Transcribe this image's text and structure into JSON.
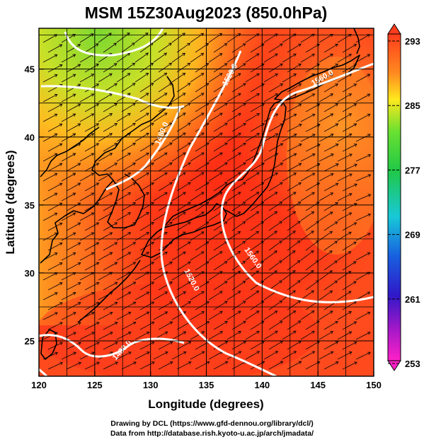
{
  "title": "MSM 15Z30Aug2023 (850.0hPa)",
  "xlabel": "Longitude (degrees)",
  "ylabel": "Latitude  (degrees)",
  "lon_range": [
    120,
    150
  ],
  "lat_range": [
    22.4,
    48
  ],
  "x_ticks": [
    {
      "value": 120,
      "label": "120"
    },
    {
      "value": 125,
      "label": "125"
    },
    {
      "value": 130,
      "label": "130"
    },
    {
      "value": 135,
      "label": "135"
    },
    {
      "value": 140,
      "label": "140"
    },
    {
      "value": 145,
      "label": "145"
    },
    {
      "value": 150,
      "label": "150"
    }
  ],
  "y_ticks": [
    {
      "value": 25,
      "label": "25"
    },
    {
      "value": 30,
      "label": "30"
    },
    {
      "value": 35,
      "label": "35"
    },
    {
      "value": 40,
      "label": "40"
    },
    {
      "value": 45,
      "label": "45"
    }
  ],
  "grid": true,
  "colorbar": {
    "min": 253,
    "max": 293,
    "labels": [
      {
        "value": 293,
        "label": "293"
      },
      {
        "value": 285,
        "label": "285"
      },
      {
        "value": 277,
        "label": "277"
      },
      {
        "value": 269,
        "label": "269"
      },
      {
        "value": 261,
        "label": "261"
      },
      {
        "value": 253,
        "label": "253"
      }
    ],
    "colors": {
      "top": "#ff4a1e",
      "orange": "#ffa020",
      "yellow": "#ffe820",
      "green": "#30d040",
      "cyan": "#20c0d0",
      "blue": "#1840d8",
      "purple": "#7020c0",
      "bottom": "#ff20c0"
    }
  },
  "contour_labels": [
    {
      "text": "1480.0",
      "lon": 131.2,
      "lat": 40.2,
      "angle": -68
    },
    {
      "text": "1520.0",
      "lon": 137.3,
      "lat": 44.5,
      "angle": -62
    },
    {
      "text": "1560.0",
      "lon": 145.5,
      "lat": 44.2,
      "angle": -30
    },
    {
      "text": "1560.0",
      "lon": 139.0,
      "lat": 31.0,
      "angle": 55
    },
    {
      "text": "1520.0",
      "lon": 133.5,
      "lat": 29.4,
      "angle": 62
    },
    {
      "text": "1480.0",
      "lon": 127.6,
      "lat": 24.2,
      "angle": -48
    }
  ],
  "credits": {
    "line1": "Drawing by DCL (https://www.gfd-dennou.org/library/dcl/)",
    "line2": "Data from http://database.rish.kyoto-u.ac.jp/arch/jmadata/"
  }
}
